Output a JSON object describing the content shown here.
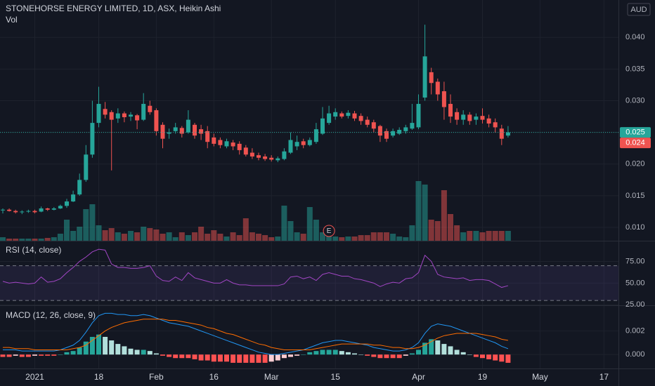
{
  "chart_data": [
    {
      "type": "candlestick",
      "title": "STONEHORSE ENERGY LIMITED, 1D, ASX, Heikin Ashi",
      "currency": "AUD",
      "marker_label": "E",
      "categories": [
        null,
        null,
        null,
        null,
        null,
        "2021",
        null,
        null,
        null,
        null,
        null,
        null,
        null,
        null,
        null,
        "18",
        null,
        null,
        null,
        null,
        null,
        null,
        null,
        null,
        "Feb",
        null,
        null,
        null,
        null,
        null,
        null,
        null,
        null,
        "16",
        null,
        null,
        null,
        null,
        null,
        null,
        null,
        null,
        "Mar",
        null,
        null,
        null,
        null,
        null,
        null,
        null,
        null,
        null,
        "15",
        null,
        null,
        null,
        null,
        null,
        null,
        null,
        null,
        null,
        null,
        null,
        null,
        "Apr",
        null,
        null,
        null,
        null,
        null,
        null,
        null,
        null,
        null,
        "19",
        null,
        null,
        null,
        null,
        null,
        null,
        null,
        null,
        "May",
        null,
        null,
        null,
        null,
        null,
        null,
        null,
        null,
        null,
        "17"
      ],
      "open": [
        0.0127,
        0.0128,
        0.0126,
        0.0124,
        0.0125,
        0.0126,
        0.0125,
        0.013,
        0.0128,
        0.013,
        0.0134,
        0.0141,
        0.0152,
        0.0175,
        0.0215,
        0.0265,
        0.0287,
        0.0282,
        0.0272,
        0.028,
        0.0275,
        0.0277,
        0.027,
        0.0292,
        0.0285,
        0.0262,
        0.0248,
        0.0252,
        0.0257,
        0.025,
        0.0262,
        0.0255,
        0.0252,
        0.0242,
        0.0238,
        0.0228,
        0.0234,
        0.0232,
        0.0226,
        0.0218,
        0.0214,
        0.0212,
        0.021,
        0.0206,
        0.0208,
        0.0218,
        0.0228,
        0.0236,
        0.023,
        0.0235,
        0.0248,
        0.0265,
        0.0275,
        0.028,
        0.0276,
        0.028,
        0.0276,
        0.027,
        0.0266,
        0.026,
        0.0252,
        0.0245,
        0.0248,
        0.0252,
        0.0256,
        0.0258,
        0.0305,
        0.0345,
        0.033,
        0.0315,
        0.0295,
        0.0282,
        0.027,
        0.0278,
        0.027,
        0.0276,
        0.0272,
        0.0266,
        0.0256,
        0.0245,
        null,
        null,
        null,
        null,
        null,
        null,
        null,
        null,
        null,
        null,
        null,
        null,
        null,
        null,
        null
      ],
      "high": [
        0.013,
        0.013,
        0.0128,
        0.0127,
        0.0128,
        0.0128,
        0.0133,
        0.0131,
        0.0132,
        0.0136,
        0.0145,
        0.0158,
        0.0185,
        0.023,
        0.03,
        0.0322,
        0.0298,
        0.0285,
        0.0288,
        0.0283,
        0.0282,
        0.0279,
        0.0312,
        0.03,
        0.0288,
        0.0266,
        0.0256,
        0.0265,
        0.026,
        0.0285,
        0.0265,
        0.0262,
        0.026,
        0.0248,
        0.0242,
        0.024,
        0.0238,
        0.0236,
        0.023,
        0.0225,
        0.0218,
        0.0216,
        0.0214,
        0.0212,
        0.0225,
        0.025,
        0.0245,
        0.024,
        0.0242,
        0.0265,
        0.029,
        0.0292,
        0.0288,
        0.0283,
        0.0285,
        0.0284,
        0.028,
        0.0275,
        0.027,
        0.0262,
        0.0256,
        0.0256,
        0.0258,
        0.0262,
        0.0295,
        0.031,
        0.042,
        0.0352,
        0.0335,
        0.033,
        0.031,
        0.0288,
        0.0285,
        0.0282,
        0.028,
        0.0288,
        0.0278,
        0.0272,
        0.0262,
        0.026,
        null,
        null,
        null,
        null,
        null,
        null,
        null,
        null,
        null,
        null,
        null,
        null,
        null,
        null,
        null
      ],
      "low": [
        0.0122,
        0.0125,
        0.0122,
        0.0121,
        0.0123,
        0.0122,
        0.0124,
        0.0126,
        0.0127,
        0.0129,
        0.0131,
        0.014,
        0.015,
        0.0172,
        0.021,
        0.0258,
        0.0272,
        0.019,
        0.0265,
        0.0266,
        0.0268,
        0.0255,
        0.0268,
        0.0278,
        0.0245,
        0.0225,
        0.024,
        0.0248,
        0.0242,
        0.0248,
        0.024,
        0.0238,
        0.0225,
        0.0228,
        0.0225,
        0.0225,
        0.0222,
        0.0215,
        0.0212,
        0.0208,
        0.0206,
        0.0205,
        0.0204,
        0.0203,
        0.0206,
        0.0216,
        0.0222,
        0.0225,
        0.0228,
        0.0232,
        0.0246,
        0.0262,
        0.027,
        0.0272,
        0.0272,
        0.0268,
        0.0262,
        0.0258,
        0.025,
        0.0235,
        0.0235,
        0.0242,
        0.0246,
        0.0248,
        0.0254,
        0.0255,
        0.03,
        0.031,
        0.03,
        0.027,
        0.0265,
        0.0262,
        0.0262,
        0.0262,
        0.0262,
        0.0264,
        0.0258,
        0.025,
        0.023,
        0.0242,
        null,
        null,
        null,
        null,
        null,
        null,
        null,
        null,
        null,
        null,
        null,
        null,
        null,
        null,
        null
      ],
      "close": [
        0.0128,
        0.0126,
        0.0124,
        0.0125,
        0.0126,
        0.0124,
        0.013,
        0.0128,
        0.013,
        0.0134,
        0.0141,
        0.0152,
        0.0175,
        0.0215,
        0.0265,
        0.0295,
        0.0278,
        0.027,
        0.028,
        0.0274,
        0.0278,
        0.0269,
        0.0295,
        0.0282,
        0.0252,
        0.024,
        0.025,
        0.0258,
        0.0248,
        0.027,
        0.0245,
        0.0248,
        0.0235,
        0.0232,
        0.023,
        0.0236,
        0.0228,
        0.0222,
        0.0215,
        0.0212,
        0.021,
        0.0208,
        0.0207,
        0.0209,
        0.022,
        0.0238,
        0.0235,
        0.023,
        0.0238,
        0.0255,
        0.0272,
        0.028,
        0.0282,
        0.0275,
        0.0281,
        0.0272,
        0.0268,
        0.0262,
        0.0256,
        0.0245,
        0.024,
        0.0252,
        0.0254,
        0.0258,
        0.0265,
        0.0295,
        0.037,
        0.0328,
        0.031,
        0.029,
        0.0275,
        0.027,
        0.0278,
        0.0268,
        0.0275,
        0.027,
        0.0264,
        0.0258,
        0.024,
        0.025,
        null,
        null,
        null,
        null,
        null,
        null,
        null,
        null,
        null,
        null,
        null,
        null,
        null,
        null,
        null
      ],
      "up_color": "#26a69a",
      "down_color": "#ef5350",
      "ylim": [
        0.0079,
        0.0459
      ],
      "yticks": [
        {
          "value": 0.01,
          "label": "0.010"
        },
        {
          "value": 0.015,
          "label": "0.015"
        },
        {
          "value": 0.02,
          "label": "0.020"
        },
        {
          "value": 0.025,
          "label": "0.025"
        },
        {
          "value": 0.03,
          "label": "0.030"
        },
        {
          "value": 0.035,
          "label": "0.035"
        },
        {
          "value": 0.04,
          "label": "0.040"
        }
      ],
      "grid": true,
      "last_price": {
        "value": 0.025,
        "label": "0.025"
      },
      "prev_close": {
        "value": 0.024,
        "label": "0.024"
      },
      "volume": {
        "name": "Vol",
        "vlim": [
          0,
          100
        ],
        "values": [
          5,
          3,
          3,
          3,
          3,
          3,
          3,
          4,
          5,
          10,
          30,
          14,
          20,
          45,
          52,
          22,
          15,
          18,
          12,
          10,
          14,
          12,
          20,
          18,
          16,
          10,
          12,
          5,
          12,
          8,
          12,
          20,
          10,
          15,
          10,
          6,
          12,
          8,
          32,
          12,
          10,
          8,
          5,
          6,
          50,
          28,
          12,
          10,
          48,
          30,
          12,
          10,
          6,
          5,
          6,
          6,
          8,
          8,
          12,
          12,
          12,
          10,
          6,
          5,
          22,
          85,
          80,
          30,
          28,
          72,
          38,
          22,
          12,
          14,
          14,
          12,
          14,
          14,
          14,
          14,
          null,
          null,
          null,
          null,
          null,
          null,
          null,
          null,
          null,
          null,
          null,
          null,
          null,
          null,
          null
        ]
      }
    },
    {
      "type": "line",
      "title": "RSI (14, close)",
      "color": "#a146c4",
      "values": [
        52,
        50,
        51,
        50,
        49,
        50,
        57,
        51,
        52,
        55,
        62,
        68,
        75,
        80,
        86,
        89,
        88,
        72,
        68,
        68,
        67,
        67,
        68,
        70,
        58,
        53,
        52,
        57,
        53,
        62,
        56,
        54,
        52,
        50,
        50,
        54,
        50,
        48,
        48,
        47,
        47,
        47,
        47,
        47,
        49,
        57,
        58,
        55,
        57,
        53,
        60,
        62,
        60,
        58,
        58,
        55,
        54,
        52,
        50,
        46,
        49,
        51,
        50,
        55,
        56,
        62,
        82,
        75,
        60,
        57,
        56,
        55,
        56,
        53,
        54,
        54,
        53,
        49,
        45,
        47,
        null,
        null,
        null,
        null,
        null,
        null,
        null,
        null,
        null,
        null,
        null,
        null,
        null,
        null,
        null
      ],
      "ylim": [
        24.4,
        98
      ],
      "yticks": [
        {
          "value": 25,
          "label": "25.00"
        },
        {
          "value": 50,
          "label": "50.00"
        },
        {
          "value": 75,
          "label": "75.00"
        }
      ],
      "bands": [
        30,
        70
      ]
    },
    {
      "type": "macd",
      "title": "MACD (12, 26, close, 9)",
      "series": [
        {
          "color": "#2196f3",
          "values": [
            0.0004,
            0.0004,
            0.0004,
            0.0003,
            0.0003,
            0.0003,
            0.0003,
            0.0003,
            0.0003,
            0.0004,
            0.0006,
            0.0008,
            0.0012,
            0.0019,
            0.0027,
            0.0033,
            0.0035,
            0.0035,
            0.0034,
            0.0034,
            0.0033,
            0.0033,
            0.0034,
            0.0033,
            0.0031,
            0.0029,
            0.0027,
            0.0026,
            0.0025,
            0.0024,
            0.0022,
            0.002,
            0.0018,
            0.0016,
            0.0014,
            0.0012,
            0.001,
            0.0008,
            0.0006,
            0.0004,
            0.0002,
            0.0001,
            0,
            0,
            0.0001,
            0.0002,
            0.0003,
            0.0004,
            0.0006,
            0.0008,
            0.001,
            0.0011,
            0.0012,
            0.0012,
            0.0011,
            0.001,
            0.0009,
            0.0008,
            0.0006,
            0.0005,
            0.0004,
            0.0003,
            0.0003,
            0.0004,
            0.0006,
            0.001,
            0.0018,
            0.0024,
            0.0026,
            0.0025,
            0.0024,
            0.0022,
            0.002,
            0.0018,
            0.0016,
            0.0014,
            0.0012,
            0.001,
            0.0007,
            0.0005,
            null,
            null,
            null,
            null,
            null,
            null,
            null,
            null,
            null,
            null,
            null,
            null,
            null,
            null,
            null
          ]
        },
        {
          "color": "#ff6d00",
          "values": [
            0.0006,
            0.0006,
            0.0005,
            0.0005,
            0.0005,
            0.0004,
            0.0004,
            0.0004,
            0.0004,
            0.0004,
            0.0004,
            0.0005,
            0.0006,
            0.0008,
            0.0012,
            0.0016,
            0.002,
            0.0023,
            0.0025,
            0.0027,
            0.0028,
            0.0029,
            0.003,
            0.003,
            0.003,
            0.003,
            0.0029,
            0.0029,
            0.0028,
            0.0027,
            0.0026,
            0.0025,
            0.0023,
            0.0022,
            0.002,
            0.0018,
            0.0017,
            0.0015,
            0.0013,
            0.0011,
            0.0009,
            0.0008,
            0.0006,
            0.0005,
            0.0004,
            0.0004,
            0.0004,
            0.0004,
            0.0004,
            0.0005,
            0.0006,
            0.0007,
            0.0008,
            0.0009,
            0.0009,
            0.0009,
            0.0009,
            0.0009,
            0.0008,
            0.0008,
            0.0007,
            0.0006,
            0.0006,
            0.0005,
            0.0005,
            0.0006,
            0.0008,
            0.0011,
            0.0014,
            0.0016,
            0.0017,
            0.0018,
            0.0018,
            0.0018,
            0.0018,
            0.0017,
            0.0016,
            0.0015,
            0.0013,
            0.0012,
            null,
            null,
            null,
            null,
            null,
            null,
            null,
            null,
            null,
            null,
            null,
            null,
            null,
            null,
            null
          ]
        }
      ],
      "histogram": {
        "colors": {
          "up_rising": "#26a69a",
          "up_falling": "#b2dfdb",
          "down_falling": "#ff5252",
          "down_rising": "#ffcdd2"
        },
        "values": [
          -0.0002,
          -0.0002,
          -0.0001,
          -0.0002,
          -0.0002,
          -0.0001,
          -0.0001,
          -0.0001,
          -0.0001,
          0,
          0.0002,
          0.0003,
          0.0006,
          0.0011,
          0.0015,
          0.0017,
          0.0015,
          0.0012,
          0.0009,
          0.0007,
          0.0005,
          0.0004,
          0.0004,
          0.0003,
          0.0001,
          -0.0001,
          -0.0002,
          -0.0003,
          -0.0003,
          -0.0003,
          -0.0004,
          -0.0005,
          -0.0005,
          -0.0006,
          -0.0006,
          -0.0006,
          -0.0007,
          -0.0007,
          -0.0007,
          -0.0007,
          -0.0007,
          -0.0007,
          -0.0006,
          -0.0005,
          -0.0003,
          -0.0002,
          -0.0001,
          0,
          0.0002,
          0.0003,
          0.0004,
          0.0004,
          0.0004,
          0.0003,
          0.0002,
          0.0001,
          0,
          -0.0001,
          -0.0002,
          -0.0003,
          -0.0003,
          -0.0003,
          -0.0003,
          -0.0001,
          0.0001,
          0.0004,
          0.001,
          0.0013,
          0.0012,
          0.0009,
          0.0007,
          0.0004,
          0.0002,
          0,
          -0.0002,
          -0.0003,
          -0.0004,
          -0.0005,
          -0.0006,
          -0.0007,
          null,
          null,
          null,
          null,
          null,
          null,
          null,
          null,
          null,
          null,
          null,
          null,
          null,
          null,
          null
        ]
      },
      "ylim": [
        -0.00118,
        0.00412
      ],
      "yticks": [
        {
          "value": 0,
          "label": "0.000"
        },
        {
          "value": 0.002,
          "label": "0.002"
        }
      ]
    }
  ]
}
